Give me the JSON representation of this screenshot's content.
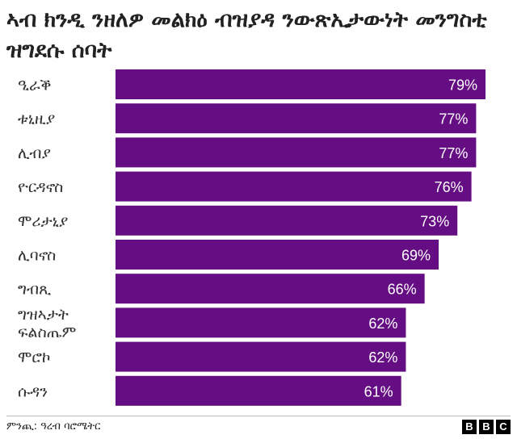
{
  "title": "ኣብ ክንዲ ንዘለዎ መልክዕ ብዝያዳ ንውጽኢታውነት መንግስቲ ዝግደሱ ሰባት",
  "source": "ምንጪ: ዓረብ ባሮሜትር",
  "logo": [
    "B",
    "B",
    "C"
  ],
  "colors": {
    "bar": "#650d82",
    "bar_label": "#ffffff",
    "category_label": "#333333"
  },
  "chart_data": {
    "type": "bar",
    "orientation": "horizontal",
    "categories": [
      "ዒራቕ",
      "ቱኒዚያ",
      "ሊብያ",
      "ዮርዳኖስ",
      "ሞሪታኒያ",
      "ሊባኖስ",
      "ግብጺ",
      "ግዝኣታት ፍልስጤም",
      "ሞሮኮ",
      "ሱዳን"
    ],
    "values": [
      79,
      77,
      77,
      76,
      73,
      69,
      66,
      62,
      62,
      61
    ],
    "value_labels": [
      "79%",
      "77%",
      "77%",
      "76%",
      "73%",
      "69%",
      "66%",
      "62%",
      "62%",
      "61%"
    ],
    "xlim": [
      0,
      79
    ],
    "grid": false,
    "legend": "none"
  }
}
